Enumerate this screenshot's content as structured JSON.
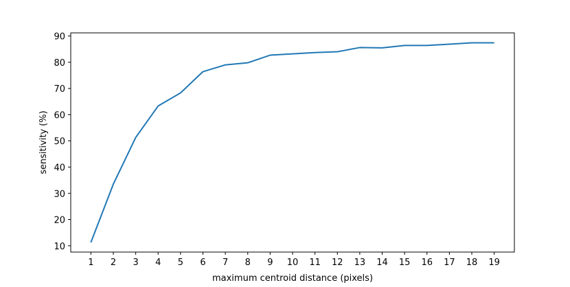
{
  "chart_data": {
    "type": "line",
    "xlabel": "maximum centroid distance (pixels)",
    "ylabel": "sensitivity (%)",
    "x": [
      1,
      2,
      3,
      4,
      5,
      6,
      7,
      8,
      9,
      10,
      11,
      12,
      13,
      14,
      15,
      16,
      17,
      18,
      19
    ],
    "series": [
      {
        "color": "#1f77b4",
        "values": [
          11.3,
          33.5,
          51.3,
          63.3,
          68.3,
          76.4,
          79.0,
          79.8,
          82.7,
          83.2,
          83.7,
          84.0,
          85.6,
          85.5,
          86.4,
          86.4,
          86.9,
          87.4,
          87.4
        ]
      }
    ],
    "xlim": [
      0.1,
      19.9
    ],
    "xticks": [
      1,
      2,
      3,
      4,
      5,
      6,
      7,
      8,
      9,
      10,
      11,
      12,
      13,
      14,
      15,
      16,
      17,
      18,
      19
    ],
    "ylim": [
      7.6,
      91.2
    ],
    "yticks": [
      10,
      20,
      30,
      40,
      50,
      60,
      70,
      80,
      90
    ]
  }
}
